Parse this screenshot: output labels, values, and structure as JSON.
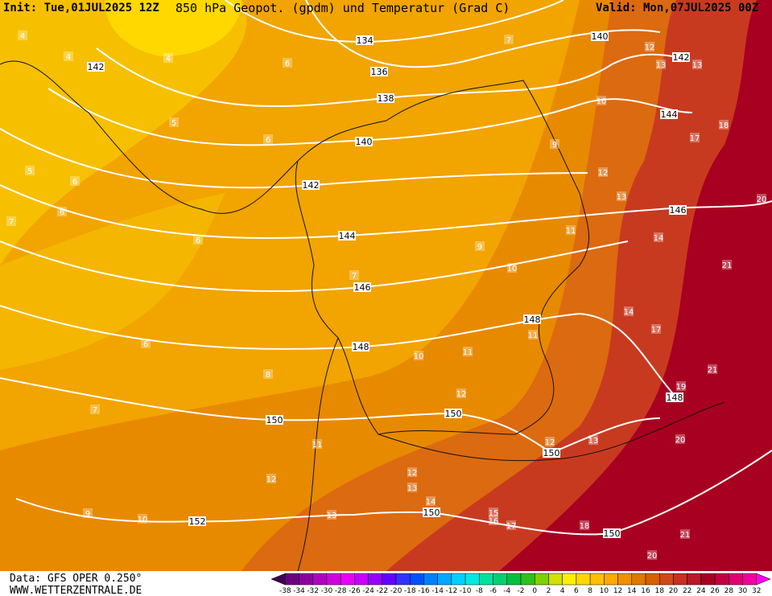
{
  "header": {
    "init": "Init: Tue,01JUL2025 12Z",
    "title": "850 hPa Geopot. (gpdm) und Temperatur (Grad C)",
    "valid": "Valid: Mon,07JUL2025 00Z"
  },
  "footer": {
    "data": "Data: GFS OPER 0.250°",
    "website": "WWW.WETTERZENTRALE.DE"
  },
  "geopotential_labels": [
    134,
    136,
    138,
    140,
    142,
    144,
    146,
    148,
    150,
    152,
    140,
    142,
    144,
    146,
    148,
    148,
    150,
    150,
    150,
    150,
    142
  ],
  "temperature_labels": [
    4,
    4,
    4,
    5,
    5,
    6,
    6,
    6,
    6,
    6,
    7,
    7,
    7,
    6,
    8,
    7,
    9,
    9,
    10,
    10,
    10,
    10,
    11,
    11,
    11,
    11,
    12,
    12,
    12,
    12,
    12,
    13,
    13,
    13,
    13,
    14,
    14,
    14,
    17,
    17,
    18,
    20,
    21,
    21,
    19,
    20,
    20,
    21,
    15,
    16,
    17,
    18,
    13,
    13,
    12,
    9
  ],
  "colorbar": {
    "ticks": [
      -38,
      -34,
      -32,
      -30,
      -28,
      -26,
      -24,
      -22,
      -20,
      -18,
      -16,
      -14,
      -12,
      -10,
      -8,
      -6,
      -4,
      -2,
      0,
      2,
      4,
      6,
      8,
      10,
      12,
      14,
      16,
      18,
      20,
      22,
      24,
      26,
      28,
      30,
      32
    ],
    "colors": [
      "#3c0050",
      "#6a0080",
      "#8c00a0",
      "#b000c0",
      "#d000e0",
      "#e800f8",
      "#c800ff",
      "#9600ff",
      "#6400ff",
      "#3232ff",
      "#0050ff",
      "#0080ff",
      "#00a8ff",
      "#00d0ff",
      "#00e8e0",
      "#00e0a0",
      "#00d070",
      "#00c040",
      "#30c020",
      "#80d000",
      "#d0e000",
      "#fff000",
      "#ffd800",
      "#ffc000",
      "#ffa800",
      "#f09000",
      "#e07800",
      "#d86000",
      "#d04818",
      "#c83020",
      "#b81828",
      "#a80020",
      "#c00040",
      "#e00070",
      "#f000a0",
      "#ff00f0"
    ]
  }
}
